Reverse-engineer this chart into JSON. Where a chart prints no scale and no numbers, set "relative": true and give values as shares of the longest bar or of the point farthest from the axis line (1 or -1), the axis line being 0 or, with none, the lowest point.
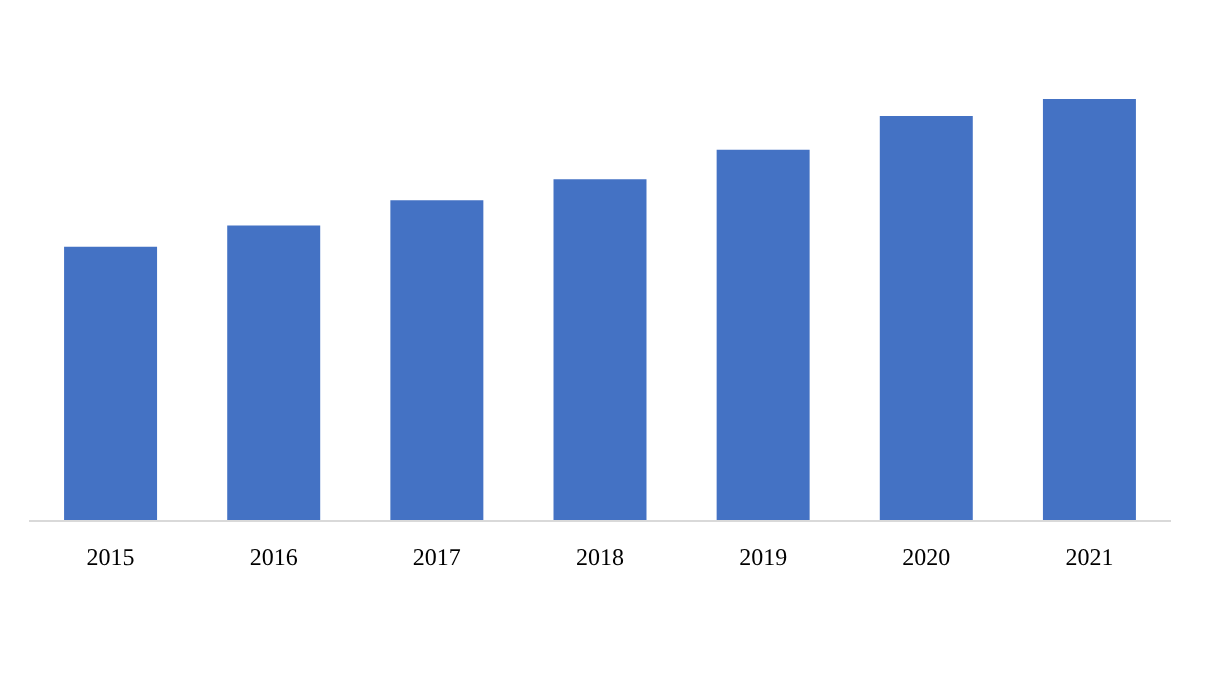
{
  "chart_data": {
    "type": "bar",
    "categories": [
      "2015",
      "2016",
      "2017",
      "2018",
      "2019",
      "2020",
      "2021"
    ],
    "values": [
      0.65,
      0.7,
      0.76,
      0.81,
      0.88,
      0.96,
      1.0
    ],
    "color": "#4472c4",
    "relative": true,
    "grid": false
  }
}
